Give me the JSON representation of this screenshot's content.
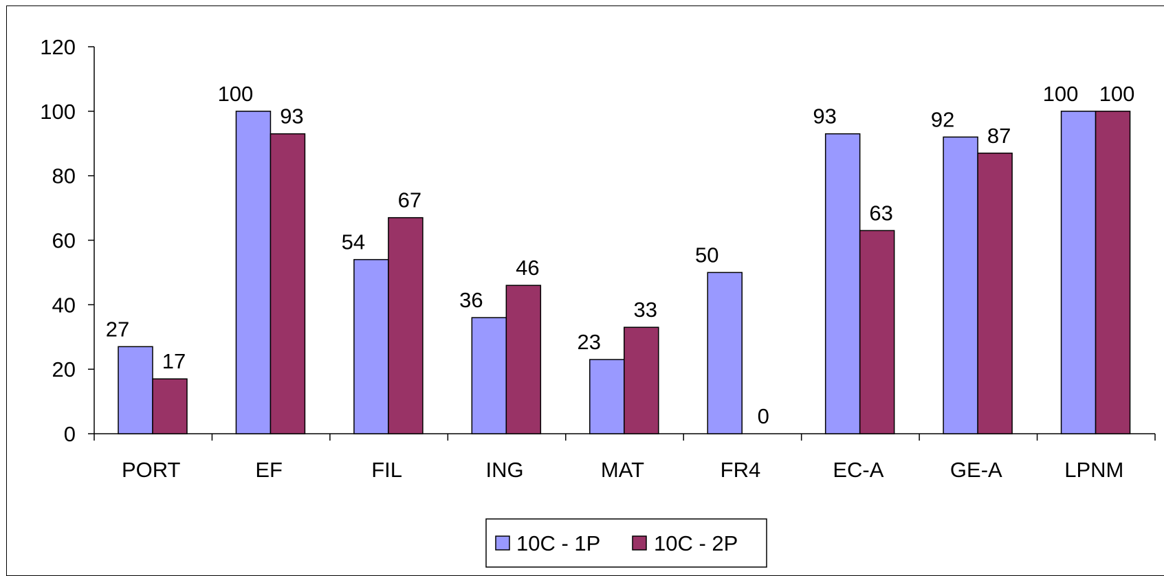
{
  "chart_data": {
    "type": "bar",
    "categories": [
      "PORT",
      "EF",
      "FIL",
      "ING",
      "MAT",
      "FR4",
      "EC-A",
      "GE-A",
      "LPNM"
    ],
    "series": [
      {
        "name": "10C - 1P",
        "values": [
          27,
          100,
          54,
          36,
          23,
          50,
          93,
          92,
          100
        ],
        "color": "#9999ff"
      },
      {
        "name": "10C - 2P",
        "values": [
          17,
          93,
          67,
          46,
          33,
          0,
          63,
          87,
          100
        ],
        "color": "#993366"
      }
    ],
    "ylim": [
      0,
      120
    ],
    "yticks": [
      0,
      20,
      40,
      60,
      80,
      100,
      120
    ],
    "title": "",
    "xlabel": "",
    "ylabel": "",
    "grid": false,
    "legend_position": "bottom"
  }
}
